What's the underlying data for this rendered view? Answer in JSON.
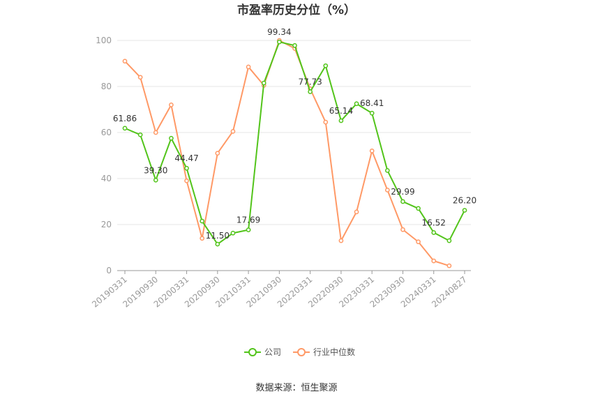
{
  "chart_data": {
    "type": "line",
    "title": "市盈率历史分位（%）",
    "ylim": [
      0,
      100
    ],
    "yticks": [
      "0",
      "20",
      "40",
      "60",
      "80",
      "100"
    ],
    "x": [
      "20190331",
      "20190630",
      "20190930",
      "20191231",
      "20200331",
      "20200630",
      "20200930",
      "20201231",
      "20210331",
      "20210630",
      "20210930",
      "20211231",
      "20220331",
      "20220630",
      "20220930",
      "20221231",
      "20230331",
      "20230630",
      "20230930",
      "20231231",
      "20240331",
      "20240630",
      "20240827"
    ],
    "xticks_shown": [
      "20190331",
      "20190930",
      "20200331",
      "20200930",
      "20210331",
      "20210930",
      "20220331",
      "20220930",
      "20230331",
      "20230930",
      "20240331",
      "20240827"
    ],
    "series": [
      {
        "name": "公司",
        "color": "#52c41a",
        "values": [
          61.86,
          59,
          39.3,
          57.5,
          44.47,
          21.5,
          11.5,
          16.3,
          17.69,
          81.5,
          99.34,
          97.8,
          77.73,
          89,
          65.14,
          72.5,
          68.41,
          43.5,
          29.99,
          27,
          16.52,
          13,
          26.2
        ],
        "labels": {
          "0": "61.86",
          "2": "39.30",
          "4": "44.47",
          "6": "11.50",
          "8": "17.69",
          "10": "99.34",
          "12": "77.73",
          "14": "65.14",
          "16": "68.41",
          "18": "29.99",
          "20": "16.52",
          "22": "26.20"
        }
      },
      {
        "name": "行业中位数",
        "color": "#ff9966",
        "values": [
          91,
          84,
          60,
          72,
          39,
          14,
          51,
          60.5,
          88.5,
          80.5,
          100,
          96.5,
          79,
          64.5,
          13,
          25.5,
          52,
          35,
          17.8,
          12.5,
          4.2,
          2.1,
          null
        ]
      }
    ],
    "legend_position": "bottom-center",
    "grid": true
  },
  "footer": {
    "source": "数据来源：恒生聚源"
  }
}
